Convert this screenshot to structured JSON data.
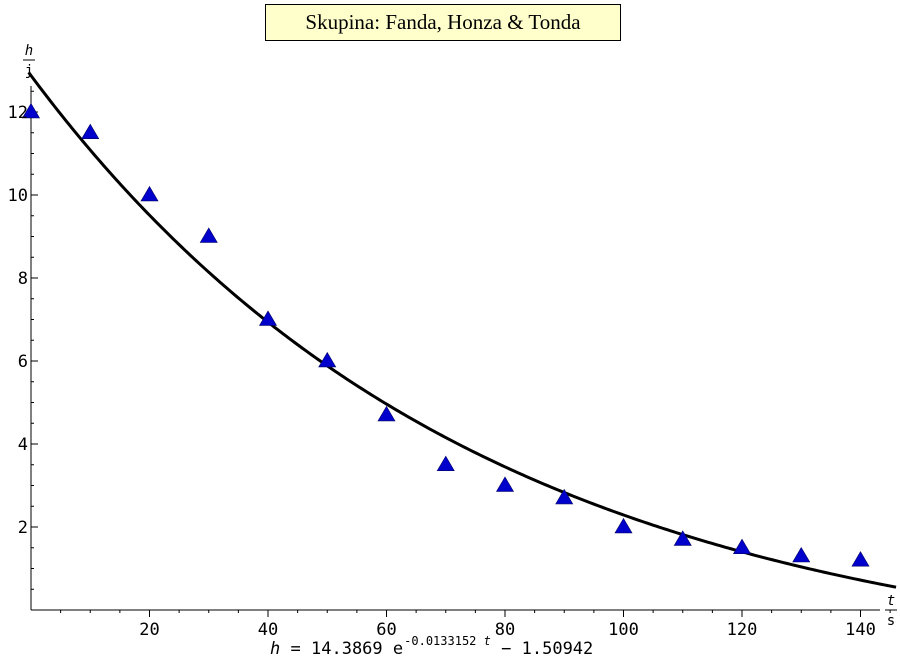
{
  "title": "Skupina: Fanda, Honza & Tonda",
  "axes": {
    "x_numerator": "t",
    "x_denominator": "s",
    "y_numerator": "h",
    "y_denominator": "j"
  },
  "formula": {
    "lhs": "h",
    "eq": "=",
    "coef": "14.3869",
    "base": "e",
    "exp_num": "-0.0133152",
    "exp_var": "t",
    "minus": "−",
    "const": "1.50942"
  },
  "colors": {
    "marker": "#0000cc",
    "curve": "#000000",
    "title_bg": "#ffffcc"
  },
  "chart_data": {
    "type": "scatter",
    "title": "Skupina: Fanda, Honza & Tonda",
    "xlabel": "t/s",
    "ylabel": "h/j",
    "xlim": [
      0,
      146
    ],
    "ylim": [
      0,
      12.6
    ],
    "x_ticks": [
      20,
      40,
      60,
      80,
      100,
      120,
      140
    ],
    "y_ticks": [
      2,
      4,
      6,
      8,
      10,
      12
    ],
    "grid": false,
    "legend": "none",
    "marker": "triangle",
    "points": {
      "x": [
        0,
        10,
        20,
        30,
        40,
        50,
        60,
        70,
        80,
        90,
        100,
        110,
        120,
        130,
        140
      ],
      "y": [
        12,
        11.5,
        10,
        9,
        7,
        6,
        4.7,
        3.5,
        3,
        2.7,
        2,
        1.7,
        1.5,
        1.3,
        1.2
      ]
    },
    "fit": {
      "type": "exponential",
      "a": 14.3869,
      "k": -0.0133152,
      "c": -1.50942
    }
  }
}
